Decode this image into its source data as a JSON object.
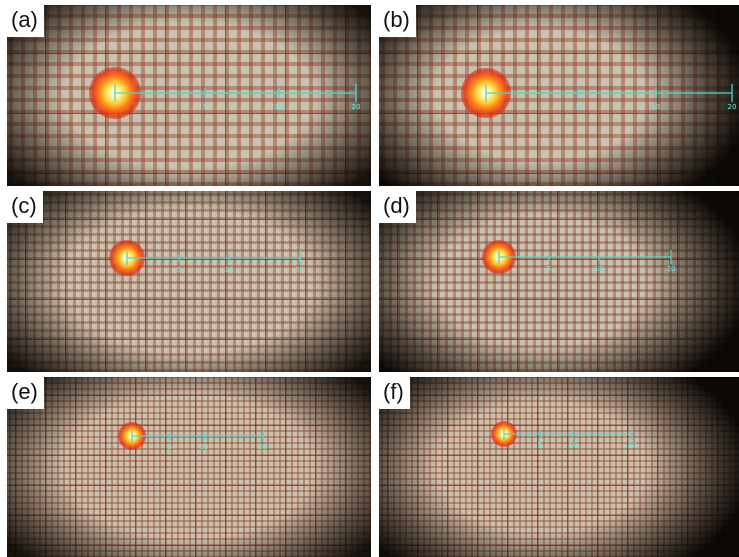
{
  "panels": [
    {
      "label": "(a)",
      "ticks": [
        "5",
        "10",
        "20"
      ],
      "grid_pitch": 12,
      "laser_size": 1.0
    },
    {
      "label": "(b)",
      "ticks": [
        "5",
        "10",
        "20"
      ],
      "grid_pitch": 12,
      "laser_size": 0.95
    },
    {
      "label": "(c)",
      "ticks": [
        "5",
        "10",
        "20"
      ],
      "grid_pitch": 8,
      "laser_size": 0.7
    },
    {
      "label": "(d)",
      "ticks": [
        "5",
        "10",
        "20"
      ],
      "grid_pitch": 8,
      "laser_size": 0.65
    },
    {
      "label": "(e)",
      "ticks": [
        "5",
        "10",
        "20"
      ],
      "grid_pitch": 6,
      "laser_size": 0.55
    },
    {
      "label": "(f)",
      "ticks": [
        "5",
        "10",
        "20"
      ],
      "grid_pitch": 6,
      "laser_size": 0.5
    }
  ],
  "colors": {
    "scale_line": "#4fd6d0",
    "grid_line": "#6b2a1c",
    "paper": "#d7d0bf"
  }
}
